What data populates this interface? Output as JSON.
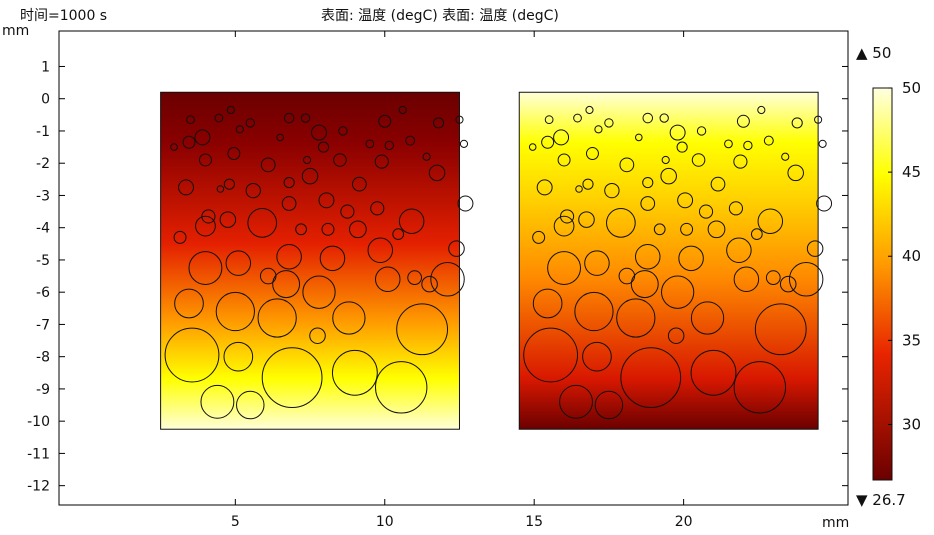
{
  "header": {
    "time_label": "时间=1000 s",
    "title": "表面: 温度 (degC)  表面: 温度 (degC)"
  },
  "colorbar": {
    "max_marker": "▲ 50",
    "min_marker": "▼ 26.7",
    "ticks": [
      "50",
      "45",
      "40",
      "35",
      "30"
    ],
    "tick_values": [
      50,
      45,
      40,
      35,
      30
    ],
    "range": [
      26.7,
      50
    ],
    "colormap": "heat"
  },
  "chart_data": {
    "type": "heatmap",
    "title": "表面: 温度 (degC)  表面: 温度 (degC)",
    "xlabel": "mm",
    "ylabel": "mm",
    "xlim": [
      -0.9,
      25.5
    ],
    "ylim": [
      -12.6,
      2.1
    ],
    "x_ticks": [
      5,
      10,
      15,
      20
    ],
    "y_ticks": [
      1,
      0,
      -1,
      -2,
      -3,
      -4,
      -5,
      -6,
      -7,
      -8,
      -9,
      -10,
      -11,
      -12
    ],
    "grid": false,
    "value_range": [
      26.7,
      50
    ],
    "domains": [
      {
        "x": [
          2.5,
          12.5
        ],
        "y": [
          -10.25,
          0.2
        ],
        "t_top": 26.7,
        "t_bottom": 50
      },
      {
        "x": [
          14.5,
          24.5
        ],
        "y": [
          -10.25,
          0.2
        ],
        "t_top": 50,
        "t_bottom": 26.7
      }
    ],
    "circle_centers_relative_mm": [
      [
        1.0,
        -0.85,
        0.13
      ],
      [
        1.95,
        -0.8,
        0.13
      ],
      [
        2.35,
        -0.55,
        0.12
      ],
      [
        2.65,
        -1.15,
        0.12
      ],
      [
        3.0,
        -0.95,
        0.14
      ],
      [
        4.3,
        -0.8,
        0.16
      ],
      [
        4.85,
        -0.8,
        0.14
      ],
      [
        5.3,
        -1.25,
        0.25
      ],
      [
        6.1,
        -1.2,
        0.14
      ],
      [
        7.5,
        -0.9,
        0.2
      ],
      [
        8.1,
        -0.55,
        0.12
      ],
      [
        9.3,
        -0.95,
        0.17
      ],
      [
        10.0,
        -0.85,
        0.12
      ],
      [
        0.45,
        -1.7,
        0.11
      ],
      [
        0.95,
        -1.55,
        0.2
      ],
      [
        1.4,
        -1.4,
        0.25
      ],
      [
        4.0,
        -1.4,
        0.11
      ],
      [
        5.45,
        -1.7,
        0.17
      ],
      [
        7.0,
        -1.6,
        0.13
      ],
      [
        7.65,
        -1.65,
        0.14
      ],
      [
        8.35,
        -1.5,
        0.15
      ],
      [
        10.15,
        -1.6,
        0.12
      ],
      [
        1.5,
        -2.1,
        0.2
      ],
      [
        2.45,
        -1.9,
        0.2
      ],
      [
        3.6,
        -2.25,
        0.23
      ],
      [
        4.9,
        -2.1,
        0.12
      ],
      [
        6.0,
        -2.1,
        0.21
      ],
      [
        7.4,
        -2.15,
        0.22
      ],
      [
        8.9,
        -2.0,
        0.12
      ],
      [
        0.85,
        -2.95,
        0.25
      ],
      [
        2.0,
        -3.0,
        0.11
      ],
      [
        2.3,
        -2.85,
        0.17
      ],
      [
        3.1,
        -3.05,
        0.24
      ],
      [
        4.3,
        -2.8,
        0.17
      ],
      [
        5.0,
        -2.6,
        0.26
      ],
      [
        6.65,
        -2.85,
        0.23
      ],
      [
        9.25,
        -2.5,
        0.26
      ],
      [
        1.6,
        -3.85,
        0.22
      ],
      [
        4.3,
        -3.45,
        0.23
      ],
      [
        5.55,
        -3.35,
        0.25
      ],
      [
        7.25,
        -3.6,
        0.22
      ],
      [
        10.2,
        -3.45,
        0.25
      ],
      [
        0.65,
        -4.5,
        0.2
      ],
      [
        1.5,
        -4.15,
        0.33
      ],
      [
        2.25,
        -3.95,
        0.26
      ],
      [
        3.4,
        -4.05,
        0.48
      ],
      [
        4.7,
        -4.25,
        0.18
      ],
      [
        5.6,
        -4.25,
        0.2
      ],
      [
        6.6,
        -4.25,
        0.28
      ],
      [
        8.4,
        -4.0,
        0.41
      ],
      [
        6.25,
        -3.7,
        0.22
      ],
      [
        7.95,
        -4.4,
        0.18
      ],
      [
        1.5,
        -5.45,
        0.55
      ],
      [
        2.6,
        -5.3,
        0.41
      ],
      [
        4.3,
        -5.1,
        0.41
      ],
      [
        5.75,
        -5.15,
        0.41
      ],
      [
        7.35,
        -4.9,
        0.41
      ],
      [
        7.6,
        -5.8,
        0.41
      ],
      [
        9.9,
        -4.85,
        0.26
      ],
      [
        9.0,
        -5.95,
        0.26
      ],
      [
        3.6,
        -5.7,
        0.26
      ],
      [
        4.2,
        -5.95,
        0.45
      ],
      [
        2.5,
        -6.8,
        0.64
      ],
      [
        0.95,
        -6.55,
        0.48
      ],
      [
        3.9,
        -7.0,
        0.64
      ],
      [
        5.3,
        -6.2,
        0.54
      ],
      [
        6.3,
        -7.0,
        0.54
      ],
      [
        8.5,
        -5.75,
        0.23
      ],
      [
        9.6,
        -5.8,
        0.56
      ],
      [
        8.75,
        -7.35,
        0.85
      ],
      [
        1.05,
        -8.15,
        0.9
      ],
      [
        2.6,
        -8.2,
        0.48
      ],
      [
        5.25,
        -7.55,
        0.26
      ],
      [
        4.4,
        -8.85,
        1.0
      ],
      [
        6.5,
        -8.7,
        0.75
      ],
      [
        8.05,
        -9.15,
        0.86
      ],
      [
        1.9,
        -9.6,
        0.55
      ],
      [
        3.0,
        -9.7,
        0.46
      ]
    ]
  }
}
